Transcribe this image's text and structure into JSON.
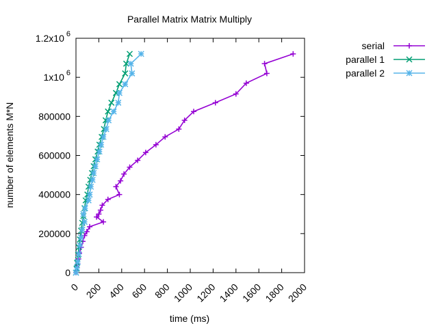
{
  "chart_data": {
    "type": "line",
    "title": "Parallel Matrix Matrix Multiply",
    "xlabel": "time (ms)",
    "ylabel": "number of elements M*N",
    "xlim": [
      0,
      2000
    ],
    "ylim": [
      0,
      1200000
    ],
    "x_ticks": [
      {
        "value": 0,
        "label": "0"
      },
      {
        "value": 200,
        "label": "200"
      },
      {
        "value": 400,
        "label": "400"
      },
      {
        "value": 600,
        "label": "600"
      },
      {
        "value": 800,
        "label": "800"
      },
      {
        "value": 1000,
        "label": "1000"
      },
      {
        "value": 1200,
        "label": "1200"
      },
      {
        "value": 1400,
        "label": "1400"
      },
      {
        "value": 1600,
        "label": "1600"
      },
      {
        "value": 1800,
        "label": "1800"
      },
      {
        "value": 2000,
        "label": "2000"
      }
    ],
    "y_ticks": [
      {
        "value": 0,
        "label": "0"
      },
      {
        "value": 200000,
        "label": "200000"
      },
      {
        "value": 400000,
        "label": "400000"
      },
      {
        "value": 600000,
        "label": "600000"
      },
      {
        "value": 800000,
        "label": "800000"
      },
      {
        "value": 1000000,
        "label": "1x10",
        "exp": "6"
      },
      {
        "value": 1200000,
        "label": "1.2x10",
        "exp": "6"
      }
    ],
    "grid": false,
    "legend_position": "top-right-outside",
    "series": [
      {
        "name": "serial",
        "color": "#9400d3",
        "marker": "plus",
        "points": [
          [
            0,
            0
          ],
          [
            5,
            10000
          ],
          [
            10,
            25000
          ],
          [
            15,
            45000
          ],
          [
            22,
            70000
          ],
          [
            30,
            100000
          ],
          [
            45,
            130000
          ],
          [
            60,
            160000
          ],
          [
            75,
            190000
          ],
          [
            95,
            210000
          ],
          [
            120,
            235000
          ],
          [
            240,
            260000
          ],
          [
            180,
            285000
          ],
          [
            200,
            300000
          ],
          [
            215,
            320000
          ],
          [
            230,
            345000
          ],
          [
            280,
            375000
          ],
          [
            380,
            400000
          ],
          [
            350,
            440000
          ],
          [
            390,
            470000
          ],
          [
            420,
            505000
          ],
          [
            470,
            540000
          ],
          [
            540,
            575000
          ],
          [
            610,
            615000
          ],
          [
            700,
            655000
          ],
          [
            780,
            695000
          ],
          [
            900,
            735000
          ],
          [
            950,
            780000
          ],
          [
            1030,
            825000
          ],
          [
            1220,
            870000
          ],
          [
            1400,
            915000
          ],
          [
            1490,
            970000
          ],
          [
            1670,
            1020000
          ],
          [
            1650,
            1070000
          ],
          [
            1900,
            1120000
          ]
        ]
      },
      {
        "name": "parallel 1",
        "color": "#009e73",
        "marker": "x",
        "points": [
          [
            0,
            0
          ],
          [
            5,
            20000
          ],
          [
            10,
            50000
          ],
          [
            18,
            90000
          ],
          [
            25,
            130000
          ],
          [
            35,
            170000
          ],
          [
            45,
            215000
          ],
          [
            55,
            255000
          ],
          [
            65,
            290000
          ],
          [
            75,
            330000
          ],
          [
            85,
            370000
          ],
          [
            100,
            400000
          ],
          [
            110,
            440000
          ],
          [
            125,
            475000
          ],
          [
            140,
            510000
          ],
          [
            155,
            545000
          ],
          [
            170,
            580000
          ],
          [
            190,
            620000
          ],
          [
            205,
            655000
          ],
          [
            225,
            695000
          ],
          [
            245,
            735000
          ],
          [
            260,
            780000
          ],
          [
            280,
            825000
          ],
          [
            310,
            870000
          ],
          [
            350,
            920000
          ],
          [
            380,
            965000
          ],
          [
            430,
            1020000
          ],
          [
            440,
            1070000
          ],
          [
            470,
            1120000
          ]
        ]
      },
      {
        "name": "parallel 2",
        "color": "#56b4e9",
        "marker": "star",
        "points": [
          [
            0,
            0
          ],
          [
            8,
            25000
          ],
          [
            15,
            55000
          ],
          [
            25,
            95000
          ],
          [
            35,
            140000
          ],
          [
            45,
            180000
          ],
          [
            55,
            220000
          ],
          [
            75,
            260000
          ],
          [
            65,
            300000
          ],
          [
            80,
            330000
          ],
          [
            110,
            370000
          ],
          [
            120,
            400000
          ],
          [
            130,
            440000
          ],
          [
            145,
            475000
          ],
          [
            155,
            510000
          ],
          [
            170,
            545000
          ],
          [
            185,
            580000
          ],
          [
            205,
            620000
          ],
          [
            220,
            655000
          ],
          [
            240,
            695000
          ],
          [
            265,
            735000
          ],
          [
            285,
            780000
          ],
          [
            330,
            825000
          ],
          [
            370,
            870000
          ],
          [
            380,
            920000
          ],
          [
            430,
            965000
          ],
          [
            490,
            1020000
          ],
          [
            480,
            1070000
          ],
          [
            570,
            1120000
          ]
        ]
      }
    ]
  }
}
